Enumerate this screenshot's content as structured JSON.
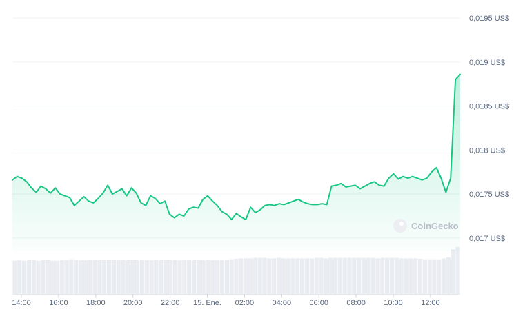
{
  "chart_data": {
    "type": "area",
    "title": "",
    "xlabel": "",
    "ylabel": "",
    "line_color": "#16c784",
    "volume_color": "#e9ecf1",
    "ylim": [
      0.01685,
      0.01965
    ],
    "y_ticks": [
      {
        "value": 0.0195,
        "label": "0,0195 US$"
      },
      {
        "value": 0.019,
        "label": "0,019 US$"
      },
      {
        "value": 0.0185,
        "label": "0,0185 US$"
      },
      {
        "value": 0.018,
        "label": "0,018 US$"
      },
      {
        "value": 0.0175,
        "label": "0,0175 US$"
      },
      {
        "value": 0.017,
        "label": "0,017 US$"
      }
    ],
    "x_ticks": [
      "14:00",
      "16:00",
      "18:00",
      "20:00",
      "22:00",
      "15. Ene.",
      "02:00",
      "04:00",
      "06:00",
      "08:00",
      "10:00",
      "12:00"
    ],
    "series": [
      {
        "values": [
          0.01766,
          0.0177,
          0.01768,
          0.01764,
          0.01757,
          0.01752,
          0.01759,
          0.01756,
          0.01751,
          0.01757,
          0.0175,
          0.01748,
          0.01746,
          0.01737,
          0.01742,
          0.01747,
          0.01742,
          0.0174,
          0.01745,
          0.01751,
          0.0176,
          0.0175,
          0.01753,
          0.01756,
          0.01748,
          0.01757,
          0.01751,
          0.0174,
          0.01737,
          0.01748,
          0.01745,
          0.01739,
          0.01742,
          0.01727,
          0.01723,
          0.01727,
          0.01725,
          0.01733,
          0.01735,
          0.01734,
          0.01744,
          0.01748,
          0.01742,
          0.01737,
          0.0173,
          0.01727,
          0.01721,
          0.01728,
          0.01724,
          0.01721,
          0.01735,
          0.01729,
          0.01732,
          0.01737,
          0.01738,
          0.01737,
          0.01739,
          0.01738,
          0.0174,
          0.01742,
          0.01744,
          0.01741,
          0.01739,
          0.01738,
          0.01738,
          0.01739,
          0.01738,
          0.01759,
          0.0176,
          0.01762,
          0.01758,
          0.01759,
          0.0176,
          0.01756,
          0.01759,
          0.01762,
          0.01764,
          0.0176,
          0.01759,
          0.01768,
          0.01773,
          0.01767,
          0.0177,
          0.01768,
          0.0177,
          0.01768,
          0.01766,
          0.01768,
          0.01775,
          0.0178,
          0.01768,
          0.01752,
          0.01768,
          0.0188,
          0.01886
        ]
      }
    ],
    "volume": [
      0.71,
      0.72,
      0.71,
      0.72,
      0.72,
      0.71,
      0.72,
      0.72,
      0.71,
      0.71,
      0.72,
      0.73,
      0.74,
      0.73,
      0.72,
      0.72,
      0.73,
      0.73,
      0.72,
      0.72,
      0.72,
      0.72,
      0.73,
      0.73,
      0.72,
      0.72,
      0.72,
      0.73,
      0.72,
      0.72,
      0.73,
      0.72,
      0.72,
      0.72,
      0.72,
      0.72,
      0.73,
      0.73,
      0.72,
      0.72,
      0.72,
      0.73,
      0.72,
      0.72,
      0.72,
      0.73,
      0.74,
      0.75,
      0.76,
      0.76,
      0.76,
      0.77,
      0.77,
      0.77,
      0.76,
      0.76,
      0.77,
      0.76,
      0.76,
      0.76,
      0.76,
      0.76,
      0.76,
      0.76,
      0.77,
      0.77,
      0.76,
      0.77,
      0.77,
      0.77,
      0.77,
      0.77,
      0.77,
      0.77,
      0.77,
      0.77,
      0.77,
      0.76,
      0.77,
      0.77,
      0.77,
      0.77,
      0.76,
      0.76,
      0.76,
      0.76,
      0.75,
      0.74,
      0.74,
      0.74,
      0.74,
      0.76,
      0.78,
      0.95,
      1.0
    ],
    "grid": true,
    "watermark": "CoinGecko"
  }
}
